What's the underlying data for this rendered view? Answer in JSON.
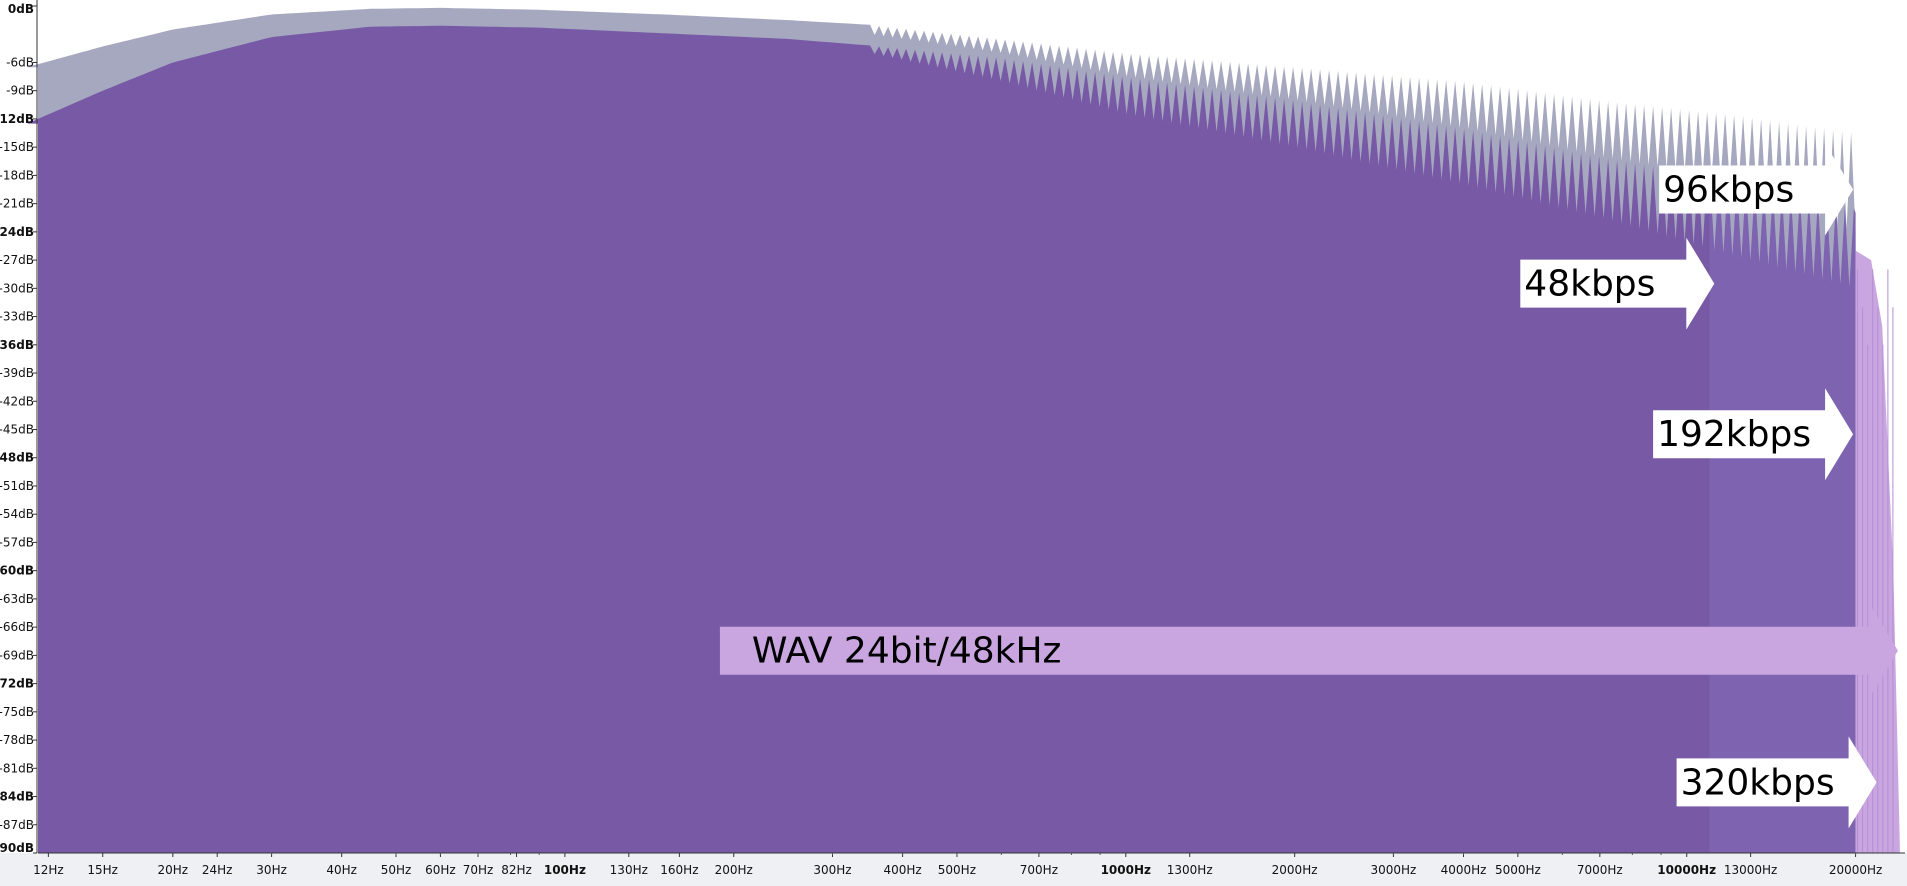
{
  "chart_data": {
    "type": "area",
    "title": "",
    "xlabel": "",
    "ylabel": "",
    "x_scale": "log",
    "xlim": [
      11,
      24000
    ],
    "ylim": [
      -90,
      0
    ],
    "grid": false,
    "legend": "none",
    "y_ticks": [
      {
        "value": 0,
        "label": "0dB",
        "major": true
      },
      {
        "value": -6,
        "label": "-6dB",
        "major": false
      },
      {
        "value": -9,
        "label": "-9dB",
        "major": false
      },
      {
        "value": -12,
        "label": "-12dB",
        "major": true
      },
      {
        "value": -15,
        "label": "-15dB",
        "major": false
      },
      {
        "value": -18,
        "label": "-18dB",
        "major": false
      },
      {
        "value": -21,
        "label": "-21dB",
        "major": false
      },
      {
        "value": -24,
        "label": "-24dB",
        "major": true
      },
      {
        "value": -27,
        "label": "-27dB",
        "major": false
      },
      {
        "value": -30,
        "label": "-30dB",
        "major": false
      },
      {
        "value": -33,
        "label": "-33dB",
        "major": false
      },
      {
        "value": -36,
        "label": "-36dB",
        "major": true
      },
      {
        "value": -39,
        "label": "-39dB",
        "major": false
      },
      {
        "value": -42,
        "label": "-42dB",
        "major": false
      },
      {
        "value": -45,
        "label": "-45dB",
        "major": false
      },
      {
        "value": -48,
        "label": "-48dB",
        "major": true
      },
      {
        "value": -51,
        "label": "-51dB",
        "major": false
      },
      {
        "value": -54,
        "label": "-54dB",
        "major": false
      },
      {
        "value": -57,
        "label": "-57dB",
        "major": false
      },
      {
        "value": -60,
        "label": "-60dB",
        "major": true
      },
      {
        "value": -63,
        "label": "-63dB",
        "major": false
      },
      {
        "value": -66,
        "label": "-66dB",
        "major": false
      },
      {
        "value": -69,
        "label": "-69dB",
        "major": false
      },
      {
        "value": -72,
        "label": "-72dB",
        "major": true
      },
      {
        "value": -75,
        "label": "-75dB",
        "major": false
      },
      {
        "value": -78,
        "label": "-78dB",
        "major": false
      },
      {
        "value": -81,
        "label": "-81dB",
        "major": false
      },
      {
        "value": -84,
        "label": "-84dB",
        "major": true
      },
      {
        "value": -87,
        "label": "-87dB",
        "major": false
      },
      {
        "value": -90,
        "label": "-90dB",
        "major": true
      }
    ],
    "x_ticks": [
      {
        "value": 12,
        "label": "12Hz",
        "major": false
      },
      {
        "value": 15,
        "label": "15Hz",
        "major": false
      },
      {
        "value": 20,
        "label": "20Hz",
        "major": false
      },
      {
        "value": 24,
        "label": "24Hz",
        "major": false
      },
      {
        "value": 30,
        "label": "30Hz",
        "major": false
      },
      {
        "value": 40,
        "label": "40Hz",
        "major": false
      },
      {
        "value": 50,
        "label": "50Hz",
        "major": false
      },
      {
        "value": 60,
        "label": "60Hz",
        "major": false
      },
      {
        "value": 70,
        "label": "70Hz",
        "major": false
      },
      {
        "value": 82,
        "label": "82Hz",
        "major": false
      },
      {
        "value": 100,
        "label": "100Hz",
        "major": true
      },
      {
        "value": 130,
        "label": "130Hz",
        "major": false
      },
      {
        "value": 160,
        "label": "160Hz",
        "major": false
      },
      {
        "value": 200,
        "label": "200Hz",
        "major": false
      },
      {
        "value": 300,
        "label": "300Hz",
        "major": false
      },
      {
        "value": 400,
        "label": "400Hz",
        "major": false
      },
      {
        "value": 500,
        "label": "500Hz",
        "major": false
      },
      {
        "value": 700,
        "label": "700Hz",
        "major": false
      },
      {
        "value": 1000,
        "label": "1000Hz",
        "major": true
      },
      {
        "value": 1300,
        "label": "1300Hz",
        "major": false
      },
      {
        "value": 2000,
        "label": "2000Hz",
        "major": false
      },
      {
        "value": 3000,
        "label": "3000Hz",
        "major": false
      },
      {
        "value": 4000,
        "label": "4000Hz",
        "major": false
      },
      {
        "value": 5000,
        "label": "5000Hz",
        "major": false
      },
      {
        "value": 7000,
        "label": "7000Hz",
        "major": false
      },
      {
        "value": 10000,
        "label": "10000Hz",
        "major": true
      },
      {
        "value": 13000,
        "label": "13000Hz",
        "major": false
      },
      {
        "value": 20000,
        "label": "20000Hz",
        "major": false
      }
    ],
    "series": [
      {
        "role": "upper-envelope",
        "color": "#a6a8bf",
        "x": [
          11,
          15,
          20,
          30,
          45,
          60,
          90,
          150,
          250,
          350
        ],
        "y": [
          -6.5,
          -4.3,
          -2.5,
          -0.9,
          -0.3,
          -0.2,
          -0.4,
          -0.9,
          -1.5,
          -2.0
        ],
        "ripple_start_hz": 350,
        "ripple_upper": [
          [
            350,
            -2.0
          ],
          [
            600,
            -3.5
          ],
          [
            1000,
            -5.0
          ],
          [
            2000,
            -6.5
          ],
          [
            4000,
            -8.0
          ],
          [
            7000,
            -10.0
          ],
          [
            12000,
            -11.5
          ],
          [
            20000,
            -13.5
          ]
        ],
        "ripple_lower": [
          [
            350,
            -3.0
          ],
          [
            600,
            -5.0
          ],
          [
            1000,
            -7.5
          ],
          [
            2000,
            -10.0
          ],
          [
            4000,
            -13.0
          ],
          [
            7000,
            -16.0
          ],
          [
            12000,
            -18.5
          ],
          [
            20000,
            -24.0
          ]
        ],
        "cutoff_hz": 20000
      },
      {
        "role": "lower-envelope",
        "color": "#7759a6",
        "x": [
          11,
          15,
          20,
          30,
          45,
          60,
          90,
          150,
          250,
          350
        ],
        "y": [
          -12.5,
          -9.0,
          -6.0,
          -3.3,
          -2.2,
          -2.1,
          -2.3,
          -2.9,
          -3.5,
          -4.2
        ],
        "ripple_start_hz": 350,
        "ripple_upper": [
          [
            350,
            -4.2
          ],
          [
            600,
            -5.5
          ],
          [
            1000,
            -7.5
          ],
          [
            2000,
            -10.0
          ],
          [
            4000,
            -13.0
          ],
          [
            7000,
            -16.0
          ],
          [
            12000,
            -18.5
          ],
          [
            20000,
            -21.5
          ]
        ],
        "ripple_lower": [
          [
            350,
            -5.0
          ],
          [
            600,
            -8.0
          ],
          [
            1000,
            -11.5
          ],
          [
            2000,
            -15.0
          ],
          [
            4000,
            -19.0
          ],
          [
            7000,
            -22.5
          ],
          [
            12000,
            -26.5
          ],
          [
            20000,
            -30.0
          ]
        ],
        "cutoff_hz": 11000
      },
      {
        "role": "band-11k-20k",
        "color": "#7d63b0",
        "from_hz": 11000,
        "to_hz": 20000
      },
      {
        "role": "wav-extension",
        "color": "#c9a6e0",
        "from_hz": 20000,
        "to_hz": 24000,
        "y": [
          -26.0,
          -34.0,
          -60.0,
          -90.0
        ]
      }
    ],
    "annotations": [
      {
        "label": "96kbps",
        "at_hz": 19800,
        "at_db": -19.5,
        "style": "white-arrow"
      },
      {
        "label": "48kbps",
        "at_hz": 11200,
        "at_db": -29.5,
        "style": "white-arrow"
      },
      {
        "label": "192kbps",
        "at_hz": 19800,
        "at_db": -45.5,
        "style": "white-arrow"
      },
      {
        "label": "WAV 24bit/48kHz",
        "at_hz": 23800,
        "at_db": -68.5,
        "style": "lavender-arrow"
      },
      {
        "label": "320kbps",
        "at_hz": 21800,
        "at_db": -82.5,
        "style": "white-arrow"
      }
    ]
  }
}
